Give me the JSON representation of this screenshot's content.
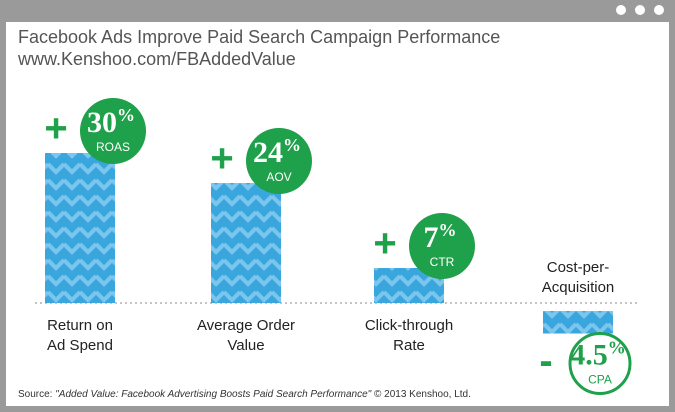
{
  "header": {
    "title": "Facebook Ads Improve Paid Search Campaign Performance",
    "subtitle": "www.Kenshoo.com/FBAddedValue"
  },
  "chart_data": {
    "type": "bar",
    "categories": [
      "Return on Ad Spend",
      "Average Order Value",
      "Click-through Rate",
      "Cost-per-Acquisition"
    ],
    "values": [
      30,
      24,
      7,
      -4.5
    ],
    "value_labels": [
      "30",
      "24",
      "7",
      "4.5"
    ],
    "signs": [
      "+",
      "+",
      "+",
      "-"
    ],
    "unit": "%",
    "metrics": [
      "ROAS",
      "AOV",
      "CTR",
      "CPA"
    ],
    "color": "#3aa6de",
    "badge_color": "#1fa04a"
  },
  "source": {
    "prefix": "Source: ",
    "title": "\"Added Value: Facebook Advertising Boosts Paid Search Performance\"",
    "suffix": " © 2013 Kenshoo, Ltd."
  }
}
